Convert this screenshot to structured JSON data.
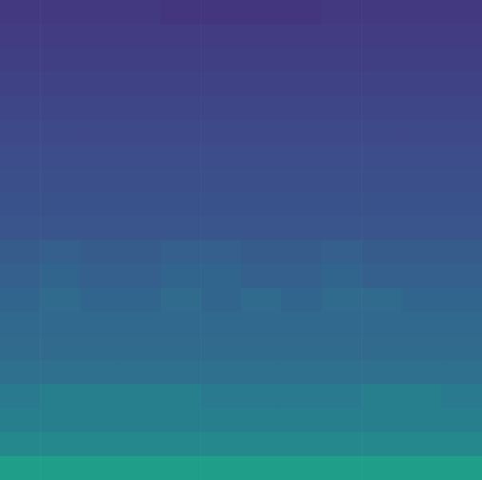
{
  "chart_data": {
    "type": "heatmap",
    "color": "viridis",
    "tick_labels": false,
    "zlim": [
      0,
      1
    ],
    "cells": [
      [
        0.15,
        0.15,
        0.15,
        0.15,
        0.14,
        0.14,
        0.14,
        0.14,
        0.15,
        0.15,
        0.15,
        0.15
      ],
      [
        0.16,
        0.16,
        0.16,
        0.16,
        0.16,
        0.16,
        0.16,
        0.16,
        0.16,
        0.16,
        0.16,
        0.16
      ],
      [
        0.17,
        0.17,
        0.17,
        0.17,
        0.17,
        0.17,
        0.17,
        0.17,
        0.17,
        0.17,
        0.17,
        0.17
      ],
      [
        0.18,
        0.18,
        0.18,
        0.18,
        0.18,
        0.18,
        0.18,
        0.18,
        0.18,
        0.18,
        0.18,
        0.18
      ],
      [
        0.19,
        0.19,
        0.19,
        0.19,
        0.19,
        0.19,
        0.19,
        0.19,
        0.19,
        0.19,
        0.19,
        0.19
      ],
      [
        0.2,
        0.2,
        0.2,
        0.2,
        0.2,
        0.2,
        0.2,
        0.2,
        0.2,
        0.2,
        0.2,
        0.2
      ],
      [
        0.21,
        0.21,
        0.21,
        0.21,
        0.21,
        0.21,
        0.21,
        0.21,
        0.21,
        0.21,
        0.21,
        0.21
      ],
      [
        0.22,
        0.22,
        0.22,
        0.22,
        0.22,
        0.22,
        0.22,
        0.22,
        0.22,
        0.22,
        0.22,
        0.22
      ],
      [
        0.23,
        0.23,
        0.23,
        0.23,
        0.23,
        0.23,
        0.23,
        0.23,
        0.23,
        0.23,
        0.23,
        0.23
      ],
      [
        0.24,
        0.24,
        0.24,
        0.24,
        0.24,
        0.24,
        0.24,
        0.24,
        0.24,
        0.24,
        0.24,
        0.24
      ],
      [
        0.26,
        0.27,
        0.26,
        0.26,
        0.27,
        0.27,
        0.26,
        0.26,
        0.27,
        0.26,
        0.26,
        0.26
      ],
      [
        0.27,
        0.29,
        0.27,
        0.27,
        0.29,
        0.29,
        0.27,
        0.27,
        0.29,
        0.27,
        0.27,
        0.27
      ],
      [
        0.29,
        0.31,
        0.29,
        0.29,
        0.31,
        0.29,
        0.31,
        0.29,
        0.31,
        0.31,
        0.29,
        0.29
      ],
      [
        0.3,
        0.3,
        0.3,
        0.3,
        0.3,
        0.3,
        0.3,
        0.3,
        0.3,
        0.3,
        0.3,
        0.3
      ],
      [
        0.31,
        0.31,
        0.31,
        0.31,
        0.31,
        0.31,
        0.31,
        0.31,
        0.31,
        0.31,
        0.31,
        0.31
      ],
      [
        0.33,
        0.33,
        0.33,
        0.33,
        0.33,
        0.33,
        0.33,
        0.33,
        0.33,
        0.33,
        0.33,
        0.33
      ],
      [
        0.37,
        0.39,
        0.39,
        0.39,
        0.39,
        0.37,
        0.37,
        0.37,
        0.37,
        0.39,
        0.39,
        0.37
      ],
      [
        0.39,
        0.39,
        0.39,
        0.39,
        0.39,
        0.39,
        0.39,
        0.39,
        0.39,
        0.39,
        0.39,
        0.39
      ],
      [
        0.42,
        0.42,
        0.42,
        0.42,
        0.42,
        0.42,
        0.42,
        0.42,
        0.42,
        0.42,
        0.42,
        0.42
      ],
      [
        0.5,
        0.5,
        0.5,
        0.5,
        0.5,
        0.5,
        0.5,
        0.5,
        0.5,
        0.5,
        0.5,
        0.5
      ]
    ]
  }
}
